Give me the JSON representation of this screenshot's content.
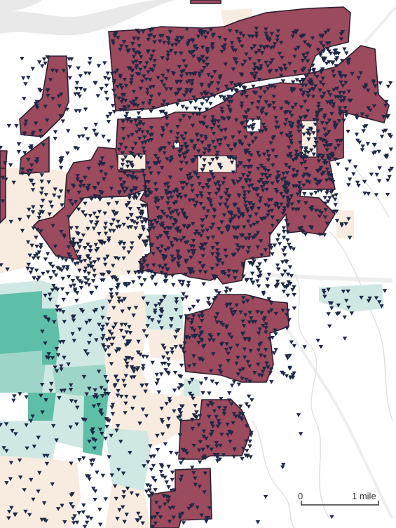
{
  "map": {
    "scale_bar": {
      "start_label": "0",
      "end_label": "1 mile"
    },
    "colors": {
      "background": "#ffffff",
      "river": "#e9e9e9",
      "road": "#eeeeee",
      "stream": "#e2e2e2",
      "highlight_fill": "#9c4a5e",
      "highlight_stroke": "#2a1f2f",
      "tract_beige": "#f8ece0",
      "tract_light_teal": "#cfe8e3",
      "tract_mid_teal": "#9dd6c8",
      "tract_dark_teal": "#5ebfa7",
      "marker": "#1f2844",
      "scale_bar": "#333333"
    },
    "marker_icon": "triangle-down-marker-icon"
  }
}
